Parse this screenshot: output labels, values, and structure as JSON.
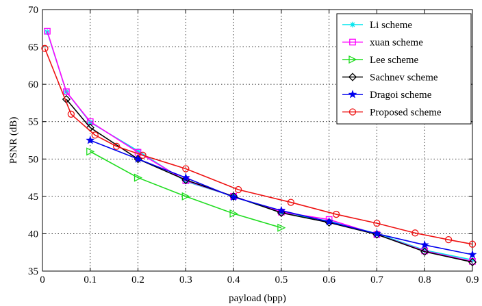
{
  "chart_data": {
    "type": "line",
    "title": "",
    "xlabel": "payload (bpp)",
    "ylabel": "PSNR (dB)",
    "xlim": [
      0,
      0.9
    ],
    "ylim": [
      35,
      70
    ],
    "xticks": [
      0,
      0.1,
      0.2,
      0.3,
      0.4,
      0.5,
      0.6,
      0.7,
      0.8,
      0.9
    ],
    "yticks": [
      35,
      40,
      45,
      50,
      55,
      60,
      65,
      70
    ],
    "xtick_labels": [
      "0",
      "0.1",
      "0.2",
      "0.3",
      "0.4",
      "0.5",
      "0.6",
      "0.7",
      "0.8",
      "0.9"
    ],
    "ytick_labels": [
      "35",
      "40",
      "45",
      "50",
      "55",
      "60",
      "65",
      "70"
    ],
    "grid": "on",
    "legend_position": "top-right",
    "series": [
      {
        "name": "Li scheme",
        "color": "#00e5ee",
        "marker": "asterisk",
        "x": [
          0.01,
          0.05,
          0.1,
          0.2,
          0.3,
          0.4,
          0.5,
          0.6,
          0.7,
          0.8,
          0.9
        ],
        "y": [
          67.0,
          59.0,
          54.9,
          51.1,
          47.0,
          45.0,
          42.8,
          41.7,
          40.0,
          37.8,
          36.5
        ]
      },
      {
        "name": "xuan scheme",
        "color": "#ff00ff",
        "marker": "square",
        "x": [
          0.01,
          0.05,
          0.1,
          0.2,
          0.3,
          0.4,
          0.5,
          0.6,
          0.7,
          0.8,
          0.9
        ],
        "y": [
          67.1,
          59.0,
          55.0,
          50.9,
          47.1,
          45.0,
          42.9,
          41.9,
          39.9,
          37.7,
          36.3
        ]
      },
      {
        "name": "Lee scheme",
        "color": "#22dd22",
        "marker": "triangle-right",
        "x": [
          0.1,
          0.2,
          0.3,
          0.4,
          0.5
        ],
        "y": [
          51.0,
          47.5,
          45.0,
          42.7,
          40.8
        ]
      },
      {
        "name": "Sachnev scheme",
        "color": "#000000",
        "marker": "diamond",
        "x": [
          0.05,
          0.1,
          0.2,
          0.3,
          0.4,
          0.5,
          0.6,
          0.7,
          0.8,
          0.9
        ],
        "y": [
          58.0,
          54.2,
          50.0,
          47.2,
          45.0,
          42.8,
          41.5,
          39.9,
          37.6,
          36.2
        ]
      },
      {
        "name": "Dragoi scheme",
        "color": "#0000ee",
        "marker": "star",
        "x": [
          0.1,
          0.2,
          0.3,
          0.4,
          0.5,
          0.6,
          0.7,
          0.8,
          0.9
        ],
        "y": [
          52.5,
          50.0,
          47.5,
          44.9,
          43.1,
          41.6,
          40.0,
          38.5,
          37.2
        ]
      },
      {
        "name": "Proposed scheme",
        "color": "#ee1111",
        "marker": "circle",
        "x": [
          0.005,
          0.06,
          0.11,
          0.155,
          0.21,
          0.3,
          0.41,
          0.52,
          0.615,
          0.7,
          0.78,
          0.85,
          0.9
        ],
        "y": [
          64.8,
          56.0,
          53.2,
          51.7,
          50.5,
          48.7,
          45.9,
          44.2,
          42.6,
          41.4,
          40.1,
          39.2,
          38.6
        ]
      }
    ]
  }
}
